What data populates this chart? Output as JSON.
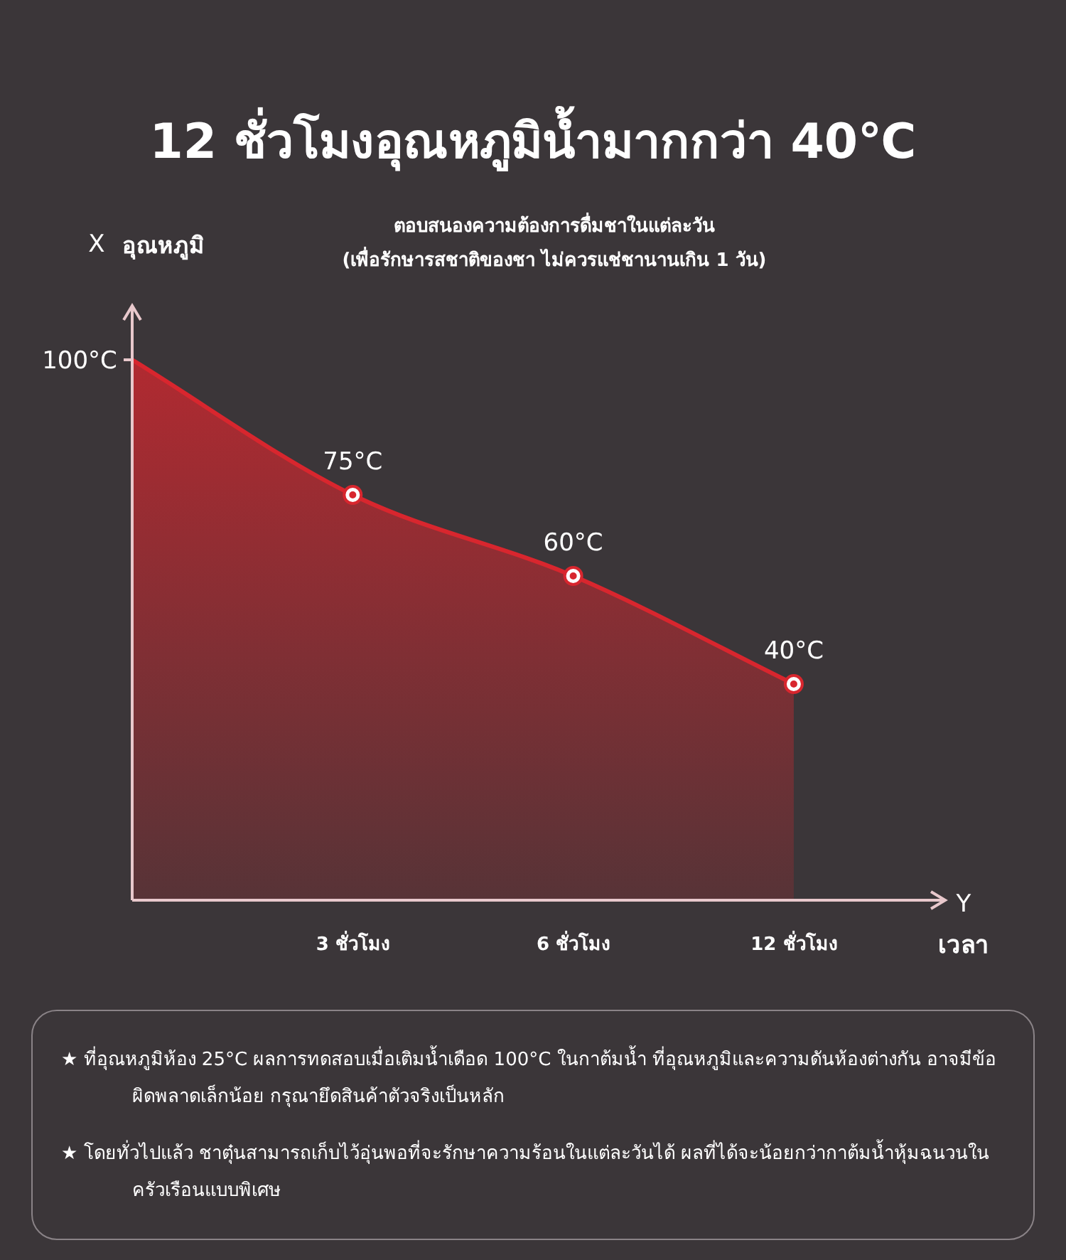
{
  "chart_data": {
    "type": "area",
    "title": "12 ชั่วโมงอุณหภูมิน้ำมากกว่า 40℃",
    "subtitle": "ตอบสนองความต้องการดื่มชาในแต่ละวัน\n(เพื่อรักษารสชาติของชา ไม่ควรแช่ชานานเกิน 1 วัน)",
    "ylabel": "อุณหภูมิ",
    "xlabel": "เวลา",
    "annotations": [
      "X",
      "Y",
      "★ ที่อุณหภูมิห้อง 25°C ผลการทดสอบเมื่อเติมน้ำเดือด 100°C ในกาต้มน้ำ ที่อุณหภูมิและความดันห้องต่างกัน อาจมีข้อผิดพลาดเล็กน้อย กรุณายึดสินค้าตัวจริงเป็นหลัก",
      "★ โดยทั่วไปแล้ว ชาตุ๋นสามารถเก็บไว้อุ่นพอที่จะรักษาความร้อนในแต่ละวันได้ ผลที่ได้จะน้อยกว่ากาต้มน้ำหุ้มฉนวนในครัวเรือนแบบพิเศษ"
    ],
    "categories": [
      null,
      "3 ชั่วโมง",
      "6 ชั่วโมง",
      "12 ชั่วโมง"
    ],
    "values": [
      100,
      75,
      60,
      40
    ],
    "value_labels": [
      null,
      "75°C",
      "60°C",
      "40°C"
    ],
    "color": "#d8262e",
    "marker": "circle",
    "grid": false,
    "ylim": [
      0,
      110
    ],
    "yticks": [
      {
        "value": 100,
        "label": "100°C"
      }
    ]
  }
}
